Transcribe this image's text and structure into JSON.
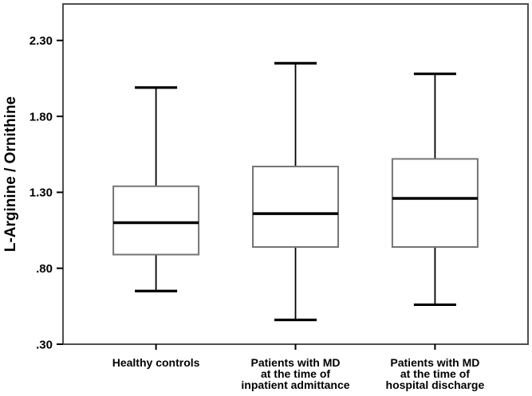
{
  "chart_data": {
    "type": "boxplot",
    "title": "",
    "xlabel": "",
    "ylabel": "L-Arginine / Ornithine",
    "ylim": [
      0.3,
      2.54
    ],
    "grid": false,
    "legend": null,
    "y_ticks": [
      {
        "label": "2.30",
        "value": 2.3
      },
      {
        "label": "1.80",
        "value": 1.8
      },
      {
        "label": "1.30",
        "value": 1.3
      },
      {
        "label": ".80",
        "value": 0.8
      },
      {
        "label": ".30",
        "value": 0.3
      }
    ],
    "categories": [
      {
        "name": "healthy-controls",
        "lines": [
          "Healthy controls"
        ]
      },
      {
        "name": "md-inpatient-admittance",
        "lines": [
          "Patients with MD",
          "at the time of",
          "inpatient admittance"
        ]
      },
      {
        "name": "md-hospital-discharge",
        "lines": [
          "Patients with MD",
          "at the time of",
          "hospital discharge"
        ]
      }
    ],
    "boxes": [
      {
        "category": "Healthy controls",
        "whisker_low": 0.65,
        "q1": 0.89,
        "median": 1.1,
        "q3": 1.34,
        "whisker_high": 1.99
      },
      {
        "category": "Patients with MD at the time of inpatient admittance",
        "whisker_low": 0.46,
        "q1": 0.94,
        "median": 1.16,
        "q3": 1.47,
        "whisker_high": 2.15
      },
      {
        "category": "Patients with MD at the time of hospital discharge",
        "whisker_low": 0.56,
        "q1": 0.94,
        "median": 1.26,
        "q3": 1.52,
        "whisker_high": 2.08
      }
    ],
    "colors": {
      "background": "#ffffff",
      "frame": "#4f4f4f",
      "box_outline": "#757575",
      "box_fill": "#ffffff",
      "median": "#000000",
      "whisker": "#000000",
      "text": "#000000"
    }
  }
}
